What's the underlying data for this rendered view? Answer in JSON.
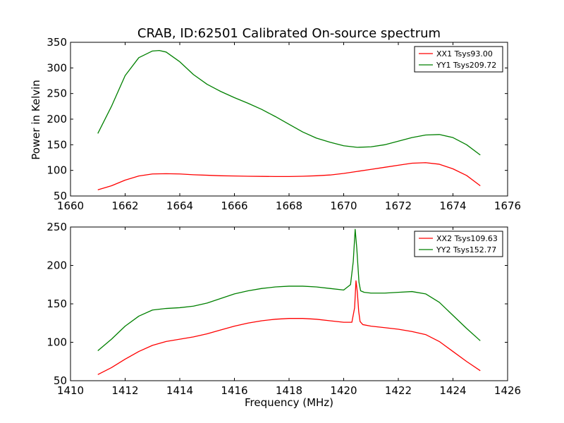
{
  "figure": {
    "title": "CRAB, ID:62501 Calibrated On-source spectrum",
    "ylabel": "Power in Kelvin",
    "xlabel": "Frequency (MHz)"
  },
  "chart_data": [
    {
      "type": "line",
      "xlim": [
        1660,
        1676
      ],
      "ylim": [
        50,
        350
      ],
      "xticks": [
        "1660",
        "1662",
        "1664",
        "1666",
        "1668",
        "1670",
        "1672",
        "1674",
        "1676"
      ],
      "yticks": [
        "50",
        "100",
        "150",
        "200",
        "250",
        "300",
        "350"
      ],
      "grid": false,
      "legend_position": "top-right",
      "series": [
        {
          "name": "XX1 Tsys93.00",
          "color": "#ff0000",
          "x": [
            1661.0,
            1661.5,
            1662.0,
            1662.5,
            1663.0,
            1663.5,
            1664.0,
            1664.5,
            1665.0,
            1665.5,
            1666.0,
            1666.5,
            1667.0,
            1667.5,
            1668.0,
            1668.5,
            1669.0,
            1669.5,
            1670.0,
            1670.5,
            1671.0,
            1671.5,
            1672.0,
            1672.5,
            1673.0,
            1673.5,
            1674.0,
            1674.5,
            1675.0
          ],
          "y": [
            62,
            70,
            81,
            89,
            93,
            93.5,
            93,
            91.5,
            90.5,
            89.5,
            89,
            88.5,
            88.3,
            88,
            88,
            88.5,
            89.5,
            91,
            94,
            98,
            102,
            106,
            110,
            114,
            115,
            112,
            103,
            90,
            70
          ]
        },
        {
          "name": "YY1 Tsys209.72",
          "color": "#008000",
          "x": [
            1661.0,
            1661.5,
            1662.0,
            1662.5,
            1663.0,
            1663.25,
            1663.5,
            1664.0,
            1664.5,
            1665.0,
            1665.5,
            1666.0,
            1666.5,
            1667.0,
            1667.5,
            1668.0,
            1668.5,
            1669.0,
            1669.5,
            1670.0,
            1670.5,
            1671.0,
            1671.5,
            1672.0,
            1672.5,
            1673.0,
            1673.5,
            1674.0,
            1674.5,
            1675.0
          ],
          "y": [
            172,
            225,
            285,
            320,
            333,
            334,
            331,
            312,
            287,
            268,
            254,
            242,
            231,
            219,
            205,
            190,
            175,
            163,
            155,
            148,
            145,
            146,
            150,
            157,
            164,
            169,
            170,
            164,
            150,
            130
          ]
        }
      ]
    },
    {
      "type": "line",
      "xlim": [
        1410,
        1426
      ],
      "ylim": [
        50,
        250
      ],
      "xticks": [
        "1410",
        "1412",
        "1414",
        "1416",
        "1418",
        "1420",
        "1422",
        "1424",
        "1426"
      ],
      "yticks": [
        "50",
        "100",
        "150",
        "200",
        "250"
      ],
      "grid": false,
      "legend_position": "top-right",
      "series": [
        {
          "name": "XX2 Tsys109.63",
          "color": "#ff0000",
          "x": [
            1411.0,
            1411.5,
            1412.0,
            1412.5,
            1413.0,
            1413.5,
            1414.0,
            1414.5,
            1415.0,
            1415.5,
            1416.0,
            1416.5,
            1417.0,
            1417.5,
            1418.0,
            1418.5,
            1419.0,
            1419.5,
            1420.0,
            1420.3,
            1420.4,
            1420.45,
            1420.5,
            1420.55,
            1420.6,
            1420.7,
            1421.0,
            1421.5,
            1422.0,
            1422.5,
            1423.0,
            1423.5,
            1424.0,
            1424.5,
            1425.0
          ],
          "y": [
            58,
            67,
            78,
            88,
            96,
            101,
            104,
            107,
            111,
            116,
            121,
            125,
            128,
            130,
            131,
            131,
            130,
            128,
            126,
            126,
            145,
            180,
            165,
            140,
            127,
            123,
            121,
            119,
            117,
            114,
            110,
            101,
            88,
            75,
            63
          ]
        },
        {
          "name": "YY2 Tsys152.77",
          "color": "#008000",
          "x": [
            1411.0,
            1411.5,
            1412.0,
            1412.5,
            1413.0,
            1413.5,
            1414.0,
            1414.5,
            1415.0,
            1415.5,
            1416.0,
            1416.5,
            1417.0,
            1417.5,
            1418.0,
            1418.5,
            1419.0,
            1419.5,
            1420.0,
            1420.25,
            1420.35,
            1420.42,
            1420.48,
            1420.52,
            1420.56,
            1420.62,
            1420.75,
            1421.0,
            1421.5,
            1422.0,
            1422.5,
            1423.0,
            1423.5,
            1424.0,
            1424.5,
            1425.0
          ],
          "y": [
            89,
            104,
            121,
            134,
            142,
            144,
            145,
            147,
            151,
            157,
            163,
            167,
            170,
            172,
            173,
            173,
            172,
            170,
            168,
            175,
            205,
            247,
            222,
            200,
            178,
            167,
            165,
            164,
            164,
            165,
            166,
            163,
            152,
            135,
            118,
            102
          ]
        }
      ]
    }
  ]
}
